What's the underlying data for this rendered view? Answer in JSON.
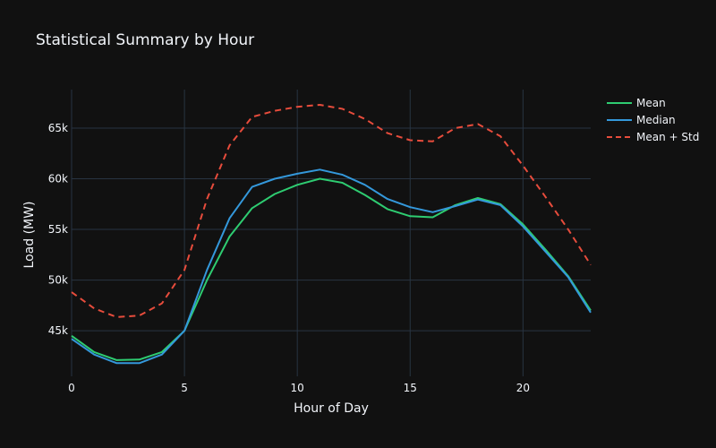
{
  "chart_data": {
    "type": "line",
    "title": "Statistical Summary by Hour",
    "xlabel": "Hour of Day",
    "ylabel": "Load (MW)",
    "xlim": [
      0,
      23
    ],
    "ylim": [
      40500,
      68800
    ],
    "x_ticks": [
      0,
      5,
      10,
      15,
      20
    ],
    "x_tick_labels": [
      "0",
      "5",
      "10",
      "15",
      "20"
    ],
    "y_ticks": [
      45000,
      50000,
      55000,
      60000,
      65000
    ],
    "y_tick_labels": [
      "45k",
      "50k",
      "55k",
      "60k",
      "65k"
    ],
    "grid": true,
    "legend_position": "top-right",
    "x": [
      0,
      1,
      2,
      3,
      4,
      5,
      6,
      7,
      8,
      9,
      10,
      11,
      12,
      13,
      14,
      15,
      16,
      17,
      18,
      19,
      20,
      21,
      22,
      23
    ],
    "series": [
      {
        "name": "Mean",
        "color": "#2ecc71",
        "dash": "solid",
        "values": [
          44500,
          42900,
          42100,
          42150,
          42900,
          45000,
          50000,
          54300,
          57100,
          58500,
          59400,
          60000,
          59600,
          58400,
          57000,
          56300,
          56200,
          57400,
          58100,
          57500,
          55500,
          53000,
          50400,
          47000
        ]
      },
      {
        "name": "Median",
        "color": "#3498db",
        "dash": "solid",
        "values": [
          44200,
          42650,
          41800,
          41800,
          42650,
          45000,
          51000,
          56100,
          59200,
          60000,
          60500,
          60900,
          60400,
          59400,
          58000,
          57200,
          56700,
          57300,
          57950,
          57400,
          55300,
          52800,
          50300,
          46800
        ]
      },
      {
        "name": "Mean + Std",
        "color": "#e74c3c",
        "dash": "dash",
        "values": [
          48800,
          47200,
          46350,
          46500,
          47700,
          51000,
          58000,
          63300,
          66100,
          66700,
          67100,
          67300,
          66900,
          65900,
          64500,
          63800,
          63700,
          65000,
          65400,
          64200,
          61300,
          58200,
          55000,
          51500
        ]
      }
    ]
  }
}
